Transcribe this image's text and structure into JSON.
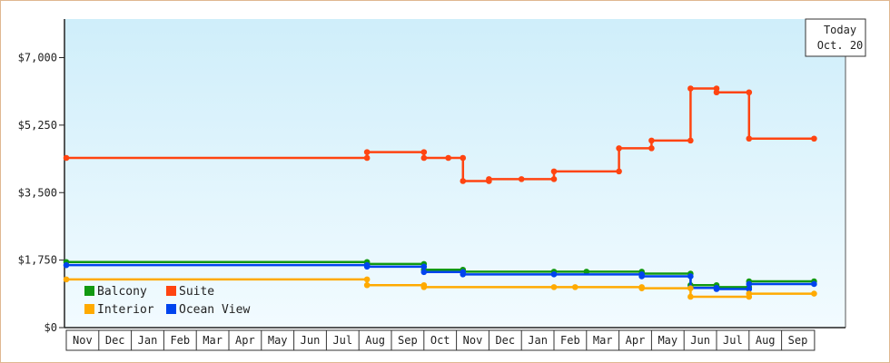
{
  "chart_data": {
    "type": "line",
    "style": "step",
    "ylim": [
      0,
      8000
    ],
    "yticks": [
      {
        "value": 0,
        "label": "$0"
      },
      {
        "value": 1750,
        "label": "$1,750"
      },
      {
        "value": 3500,
        "label": "$3,500"
      },
      {
        "value": 5250,
        "label": "$5,250"
      },
      {
        "value": 7000,
        "label": "$7,000"
      }
    ],
    "months": [
      "Nov",
      "Dec",
      "Jan",
      "Feb",
      "Mar",
      "Apr",
      "May",
      "Jun",
      "Jul",
      "Aug",
      "Sep",
      "Oct",
      "Nov",
      "Dec",
      "Jan",
      "Feb",
      "Mar",
      "Apr",
      "May",
      "Jun",
      "Jul",
      "Aug",
      "Sep"
    ],
    "today": {
      "line1": "Today",
      "line2": "Oct. 20"
    },
    "legend": [
      {
        "name": "Balcony",
        "color": "#119911"
      },
      {
        "name": "Suite",
        "color": "#ff4411"
      },
      {
        "name": "Interior",
        "color": "#ffaa00"
      },
      {
        "name": "Ocean View",
        "color": "#0044ee"
      }
    ],
    "series": [
      {
        "name": "Suite",
        "color": "#ff4411",
        "points": [
          [
            0.0,
            4400
          ],
          [
            9.25,
            4400
          ],
          [
            9.25,
            4550
          ],
          [
            11.0,
            4550
          ],
          [
            11.0,
            4400
          ],
          [
            11.75,
            4400
          ],
          [
            12.2,
            4400
          ],
          [
            12.2,
            3800
          ],
          [
            13.0,
            3800
          ],
          [
            13.0,
            3850
          ],
          [
            14.0,
            3850
          ],
          [
            15.0,
            3850
          ],
          [
            15.0,
            4050
          ],
          [
            17.0,
            4050
          ],
          [
            17.0,
            4650
          ],
          [
            18.0,
            4650
          ],
          [
            18.0,
            4850
          ],
          [
            19.2,
            4850
          ],
          [
            19.2,
            6200
          ],
          [
            20.0,
            6200
          ],
          [
            20.0,
            6100
          ],
          [
            21.0,
            6100
          ],
          [
            21.0,
            4900
          ],
          [
            23.0,
            4900
          ]
        ]
      },
      {
        "name": "Balcony",
        "color": "#119911",
        "points": [
          [
            0.0,
            1700
          ],
          [
            9.25,
            1700
          ],
          [
            9.25,
            1650
          ],
          [
            11.0,
            1650
          ],
          [
            11.0,
            1500
          ],
          [
            12.2,
            1500
          ],
          [
            12.2,
            1450
          ],
          [
            15.0,
            1450
          ],
          [
            16.0,
            1450
          ],
          [
            17.7,
            1450
          ],
          [
            17.7,
            1400
          ],
          [
            19.2,
            1400
          ],
          [
            19.2,
            1100
          ],
          [
            20.0,
            1100
          ],
          [
            20.0,
            1050
          ],
          [
            21.0,
            1050
          ],
          [
            21.0,
            1200
          ],
          [
            23.0,
            1200
          ]
        ]
      },
      {
        "name": "Ocean View",
        "color": "#0044ee",
        "points": [
          [
            0.0,
            1620
          ],
          [
            9.25,
            1620
          ],
          [
            9.25,
            1580
          ],
          [
            11.0,
            1580
          ],
          [
            11.0,
            1440
          ],
          [
            12.2,
            1440
          ],
          [
            12.2,
            1380
          ],
          [
            15.0,
            1380
          ],
          [
            17.7,
            1380
          ],
          [
            17.7,
            1330
          ],
          [
            19.2,
            1330
          ],
          [
            19.2,
            1030
          ],
          [
            20.0,
            1030
          ],
          [
            20.0,
            1000
          ],
          [
            21.0,
            1000
          ],
          [
            21.0,
            1130
          ],
          [
            23.0,
            1130
          ]
        ]
      },
      {
        "name": "Interior",
        "color": "#ffaa00",
        "points": [
          [
            0.0,
            1250
          ],
          [
            9.25,
            1250
          ],
          [
            9.25,
            1100
          ],
          [
            11.0,
            1100
          ],
          [
            11.0,
            1050
          ],
          [
            15.0,
            1050
          ],
          [
            15.65,
            1050
          ],
          [
            17.7,
            1050
          ],
          [
            17.7,
            1020
          ],
          [
            19.2,
            1020
          ],
          [
            19.2,
            800
          ],
          [
            21.0,
            800
          ],
          [
            21.0,
            880
          ],
          [
            23.0,
            880
          ]
        ]
      }
    ]
  }
}
